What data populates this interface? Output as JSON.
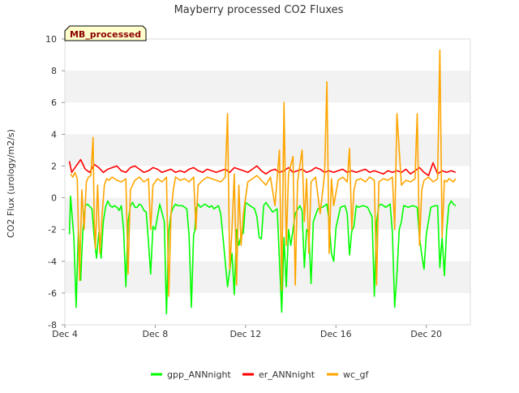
{
  "chart_data": {
    "type": "line",
    "title": "Mayberry processed CO2 Fluxes",
    "xlabel": "",
    "ylabel": "CO2 Flux (urology/m2/s)",
    "badge": "MB_processed",
    "ylim": [
      -8,
      10
    ],
    "yticks": [
      -8,
      -6,
      -4,
      -2,
      0,
      2,
      4,
      6,
      8,
      10
    ],
    "xlim": [
      4,
      21.95
    ],
    "xticks": [
      {
        "value": 4,
        "label": "Dec 4"
      },
      {
        "value": 8,
        "label": "Dec 8"
      },
      {
        "value": 12,
        "label": "Dec 12"
      },
      {
        "value": 16,
        "label": "Dec 16"
      },
      {
        "value": 20,
        "label": "Dec 20"
      }
    ],
    "grid": "alternating horizontal bands",
    "legend_position": "bottom",
    "series": [
      {
        "name": "gpp_ANNnight",
        "color": "#00ff00",
        "x": [
          4.2,
          4.25,
          4.3,
          4.4,
          4.5,
          4.6,
          4.7,
          4.75,
          4.8,
          4.9,
          5.0,
          5.2,
          5.3,
          5.4,
          5.5,
          5.6,
          5.7,
          5.8,
          5.9,
          6.0,
          6.1,
          6.2,
          6.3,
          6.4,
          6.5,
          6.6,
          6.7,
          6.8,
          6.9,
          7.0,
          7.1,
          7.2,
          7.3,
          7.4,
          7.5,
          7.6,
          7.7,
          7.8,
          7.9,
          8.0,
          8.2,
          8.4,
          8.5,
          8.6,
          8.7,
          8.8,
          8.9,
          9.0,
          9.2,
          9.4,
          9.5,
          9.6,
          9.7,
          9.75,
          9.8,
          9.9,
          10.0,
          10.2,
          10.4,
          10.5,
          10.6,
          10.7,
          10.8,
          10.9,
          11.0,
          11.2,
          11.4,
          11.5,
          11.6,
          11.7,
          11.8,
          11.9,
          12.0,
          12.2,
          12.4,
          12.5,
          12.6,
          12.7,
          12.8,
          12.9,
          13.0,
          13.2,
          13.4,
          13.6,
          13.7,
          13.8,
          13.9,
          14.0,
          14.2,
          14.4,
          14.5,
          14.6,
          14.7,
          14.8,
          14.9,
          15.0,
          15.2,
          15.4,
          15.6,
          15.7,
          15.8,
          15.9,
          16.0,
          16.2,
          16.4,
          16.5,
          16.6,
          16.7,
          16.8,
          16.9,
          17.0,
          17.2,
          17.4,
          17.6,
          17.7,
          17.8,
          17.9,
          18.0,
          18.2,
          18.4,
          18.5,
          18.6,
          18.7,
          18.8,
          18.9,
          19.0,
          19.2,
          19.4,
          19.6,
          19.7,
          19.8,
          19.9,
          20.0,
          20.2,
          20.4,
          20.5,
          20.6,
          20.7,
          20.8,
          20.9,
          21.0,
          21.1,
          21.2,
          21.3
        ],
        "values": [
          -2.3,
          0.1,
          -0.8,
          -2.5,
          -6.9,
          -2.0,
          -5.2,
          -3.5,
          -2.0,
          -0.5,
          -0.4,
          -0.7,
          -2.5,
          -3.8,
          -2.2,
          -3.8,
          -1.5,
          -0.6,
          -0.2,
          -0.5,
          -0.6,
          -0.5,
          -0.6,
          -0.8,
          -0.5,
          -2.0,
          -5.6,
          -1.5,
          -0.5,
          -0.3,
          -0.6,
          -0.6,
          -0.4,
          -0.5,
          -0.8,
          -0.9,
          -2.8,
          -4.8,
          -1.8,
          -2.0,
          -0.4,
          -1.5,
          -7.3,
          -2.1,
          -1.0,
          -0.6,
          -0.4,
          -0.5,
          -0.5,
          -0.7,
          -2.4,
          -6.9,
          -2.3,
          -2.1,
          -0.7,
          -0.4,
          -0.6,
          -0.4,
          -0.6,
          -0.5,
          -0.7,
          -0.6,
          -0.5,
          -1.0,
          -2.5,
          -5.6,
          -3.5,
          -6.1,
          -2.0,
          -3.0,
          -2.4,
          -2.2,
          -0.3,
          -0.5,
          -0.7,
          -1.2,
          -2.5,
          -2.6,
          -0.5,
          -0.3,
          -0.5,
          -0.9,
          -0.7,
          -7.2,
          -2.5,
          -5.6,
          -2.0,
          -3.0,
          -1.0,
          -0.5,
          -0.8,
          -4.4,
          -2.0,
          -2.2,
          -5.4,
          -1.5,
          -0.7,
          -0.6,
          -0.4,
          -1.5,
          -3.5,
          -4.0,
          -1.9,
          -0.6,
          -0.5,
          -1.0,
          -3.6,
          -2.1,
          -1.8,
          -0.5,
          -0.6,
          -0.5,
          -0.6,
          -1.2,
          -6.2,
          -1.5,
          -0.5,
          -0.4,
          -0.6,
          -0.4,
          -2.2,
          -6.9,
          -4.8,
          -2.0,
          -1.5,
          -0.5,
          -0.6,
          -0.5,
          -0.6,
          -2.5,
          -3.6,
          -4.5,
          -2.3,
          -0.6,
          -0.5,
          -0.5,
          -4.4,
          -2.5,
          -4.9,
          -2.0,
          -0.5,
          -0.2,
          -0.4,
          -0.5
        ]
      },
      {
        "name": "er_ANNnight",
        "color": "#ff0000",
        "x": [
          4.2,
          4.3,
          4.5,
          4.7,
          4.9,
          5.1,
          5.3,
          5.5,
          5.7,
          5.9,
          6.1,
          6.3,
          6.5,
          6.7,
          6.9,
          7.1,
          7.3,
          7.5,
          7.7,
          7.9,
          8.1,
          8.3,
          8.5,
          8.7,
          8.9,
          9.1,
          9.3,
          9.5,
          9.7,
          9.9,
          10.1,
          10.3,
          10.5,
          10.7,
          10.9,
          11.1,
          11.3,
          11.5,
          11.7,
          11.9,
          12.1,
          12.3,
          12.5,
          12.7,
          12.9,
          13.1,
          13.3,
          13.5,
          13.7,
          13.9,
          14.1,
          14.3,
          14.5,
          14.7,
          14.9,
          15.1,
          15.3,
          15.5,
          15.7,
          15.9,
          16.1,
          16.3,
          16.5,
          16.7,
          16.9,
          17.1,
          17.3,
          17.5,
          17.7,
          17.9,
          18.1,
          18.3,
          18.5,
          18.7,
          18.9,
          19.1,
          19.3,
          19.5,
          19.7,
          19.9,
          20.1,
          20.3,
          20.5,
          20.7,
          20.9,
          21.1,
          21.3
        ],
        "values": [
          2.3,
          1.6,
          2.0,
          2.4,
          1.8,
          1.6,
          2.1,
          1.9,
          1.6,
          1.8,
          1.9,
          2.0,
          1.7,
          1.6,
          1.9,
          2.0,
          1.8,
          1.6,
          1.7,
          1.9,
          1.8,
          1.6,
          1.7,
          1.8,
          1.6,
          1.7,
          1.6,
          1.8,
          1.9,
          1.7,
          1.6,
          1.8,
          1.7,
          1.6,
          1.7,
          1.8,
          1.6,
          1.9,
          1.8,
          1.7,
          1.6,
          1.8,
          2.0,
          1.7,
          1.5,
          1.7,
          1.8,
          1.6,
          1.7,
          1.9,
          1.6,
          1.7,
          1.8,
          1.6,
          1.7,
          1.9,
          1.8,
          1.6,
          1.7,
          1.6,
          1.7,
          1.8,
          1.6,
          1.7,
          1.6,
          1.7,
          1.8,
          1.6,
          1.7,
          1.6,
          1.5,
          1.7,
          1.6,
          1.7,
          1.6,
          1.8,
          1.5,
          1.7,
          1.9,
          1.6,
          1.4,
          2.2,
          1.5,
          1.7,
          1.6,
          1.7,
          1.6
        ]
      },
      {
        "name": "wc_gf",
        "color": "#ffa500",
        "x": [
          4.25,
          4.35,
          4.45,
          4.55,
          4.65,
          4.75,
          4.85,
          4.95,
          5.05,
          5.15,
          5.25,
          5.3,
          5.35,
          5.45,
          5.55,
          5.65,
          5.75,
          5.85,
          5.95,
          6.1,
          6.3,
          6.5,
          6.7,
          6.8,
          6.9,
          7.1,
          7.3,
          7.5,
          7.7,
          7.8,
          7.9,
          8.1,
          8.3,
          8.5,
          8.6,
          8.7,
          8.8,
          8.9,
          9.1,
          9.3,
          9.5,
          9.7,
          9.8,
          9.9,
          10.1,
          10.3,
          10.5,
          10.7,
          10.9,
          11.1,
          11.2,
          11.3,
          11.4,
          11.5,
          11.6,
          11.7,
          11.8,
          11.9,
          12.1,
          12.3,
          12.5,
          12.7,
          12.9,
          13.1,
          13.3,
          13.5,
          13.6,
          13.7,
          13.8,
          13.9,
          14.1,
          14.2,
          14.3,
          14.5,
          14.6,
          14.7,
          14.8,
          14.9,
          15.1,
          15.3,
          15.5,
          15.6,
          15.7,
          15.8,
          15.9,
          16.1,
          16.3,
          16.5,
          16.6,
          16.7,
          16.8,
          16.9,
          17.1,
          17.3,
          17.5,
          17.7,
          17.8,
          17.9,
          18.1,
          18.3,
          18.5,
          18.6,
          18.7,
          18.9,
          19.1,
          19.3,
          19.5,
          19.6,
          19.7,
          19.8,
          19.9,
          20.1,
          20.3,
          20.5,
          20.6,
          20.7,
          20.8,
          20.9,
          21.0,
          21.1,
          21.2,
          21.3
        ],
        "values": [
          1.5,
          1.3,
          1.6,
          1.2,
          -5.2,
          0.5,
          -2.0,
          1.0,
          1.3,
          1.4,
          3.8,
          -1.5,
          -3.2,
          0.8,
          -3.5,
          -1.0,
          0.8,
          1.2,
          1.1,
          1.3,
          1.1,
          1.0,
          1.2,
          -4.8,
          0.5,
          1.1,
          1.3,
          1.0,
          1.2,
          -2.0,
          0.8,
          1.2,
          1.0,
          1.3,
          -6.2,
          -1.0,
          0.5,
          1.3,
          1.1,
          1.2,
          1.0,
          1.3,
          -2.0,
          0.8,
          1.1,
          1.3,
          1.2,
          1.1,
          1.0,
          1.3,
          5.3,
          -4.5,
          -2.0,
          1.5,
          -5.5,
          0.8,
          -3.0,
          -1.0,
          1.0,
          1.2,
          1.4,
          1.1,
          0.8,
          1.3,
          -0.5,
          3.0,
          -5.8,
          6.0,
          -3.0,
          1.5,
          2.6,
          -5.5,
          1.0,
          3.0,
          -1.5,
          1.2,
          -3.5,
          1.0,
          1.3,
          -1.0,
          1.5,
          7.3,
          -3.5,
          1.2,
          -0.5,
          1.1,
          1.3,
          1.0,
          3.1,
          -2.0,
          0.5,
          1.1,
          1.2,
          1.0,
          1.3,
          1.1,
          -5.5,
          1.0,
          1.2,
          1.1,
          1.3,
          -2.0,
          5.3,
          0.8,
          1.1,
          1.0,
          1.2,
          5.3,
          -3.0,
          0.5,
          1.1,
          1.3,
          1.0,
          1.2,
          9.3,
          -2.5,
          1.1,
          1.0,
          1.2,
          1.1,
          1.0,
          1.2
        ]
      }
    ]
  }
}
